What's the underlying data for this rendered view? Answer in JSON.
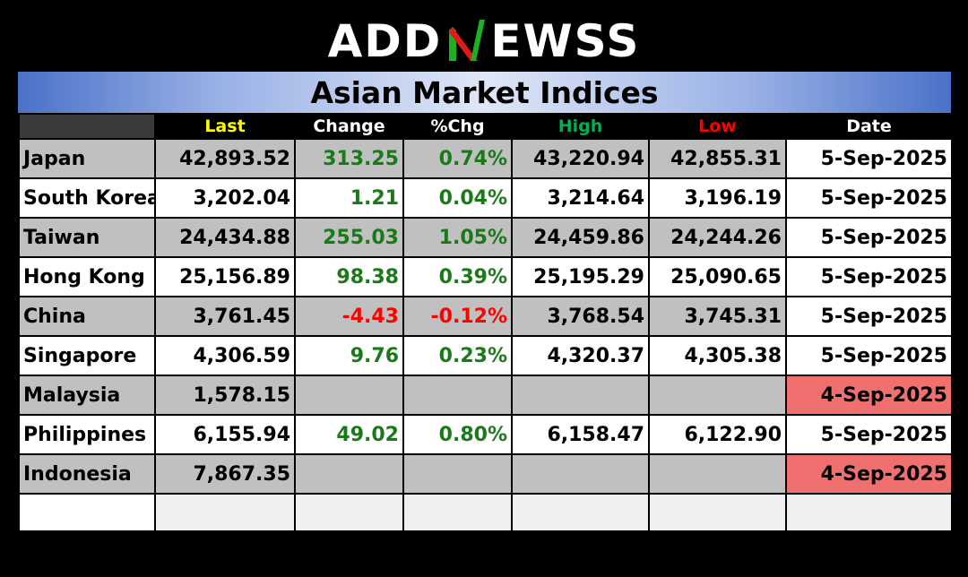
{
  "logo": {
    "text_left": "ADD",
    "text_right": "EWSS",
    "icon": "n-check-logo-icon",
    "colors": {
      "check_green": "#1db020",
      "check_red": "#e01a1a"
    }
  },
  "title": "Asian Market Indices",
  "columns": {
    "name": "",
    "last": "Last",
    "change": "Change",
    "pct": "%Chg",
    "high": "High",
    "low": "Low",
    "date": "Date"
  },
  "colors": {
    "positive": "#1a7a1a",
    "negative": "#ff0000",
    "stale_date": "#f07070",
    "header_last": "#ffff00",
    "header_high": "#00b050",
    "header_low": "#ff0000"
  },
  "rows": [
    {
      "name": "Japan",
      "last": "42,893.52",
      "change": "313.25",
      "pct": "0.74%",
      "high": "43,220.94",
      "low": "42,855.31",
      "date": "5-Sep-2025",
      "dir": "pos",
      "stale": false
    },
    {
      "name": "South Korea",
      "last": "3,202.04",
      "change": "1.21",
      "pct": "0.04%",
      "high": "3,214.64",
      "low": "3,196.19",
      "date": "5-Sep-2025",
      "dir": "pos",
      "stale": false
    },
    {
      "name": "Taiwan",
      "last": "24,434.88",
      "change": "255.03",
      "pct": "1.05%",
      "high": "24,459.86",
      "low": "24,244.26",
      "date": "5-Sep-2025",
      "dir": "pos",
      "stale": false
    },
    {
      "name": "Hong Kong",
      "last": "25,156.89",
      "change": "98.38",
      "pct": "0.39%",
      "high": "25,195.29",
      "low": "25,090.65",
      "date": "5-Sep-2025",
      "dir": "pos",
      "stale": false
    },
    {
      "name": "China",
      "last": "3,761.45",
      "change": "-4.43",
      "pct": "-0.12%",
      "high": "3,768.54",
      "low": "3,745.31",
      "date": "5-Sep-2025",
      "dir": "neg",
      "stale": false
    },
    {
      "name": "Singapore",
      "last": "4,306.59",
      "change": "9.76",
      "pct": "0.23%",
      "high": "4,320.37",
      "low": "4,305.38",
      "date": "5-Sep-2025",
      "dir": "pos",
      "stale": false
    },
    {
      "name": "Malaysia",
      "last": "1,578.15",
      "change": "",
      "pct": "",
      "high": "",
      "low": "",
      "date": "4-Sep-2025",
      "dir": "",
      "stale": true
    },
    {
      "name": "Philippines",
      "last": "6,155.94",
      "change": "49.02",
      "pct": "0.80%",
      "high": "6,158.47",
      "low": "6,122.90",
      "date": "5-Sep-2025",
      "dir": "pos",
      "stale": false
    },
    {
      "name": "Indonesia",
      "last": "7,867.35",
      "change": "",
      "pct": "",
      "high": "",
      "low": "",
      "date": "4-Sep-2025",
      "dir": "",
      "stale": true
    }
  ]
}
